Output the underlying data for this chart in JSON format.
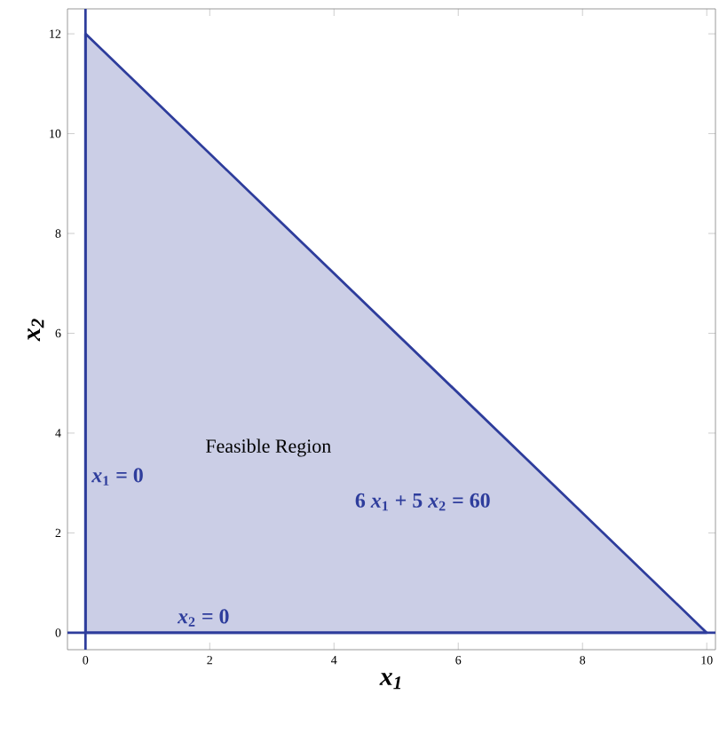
{
  "chart_data": {
    "type": "area",
    "xlabel": "x$_{1}$",
    "ylabel": "x$_{2}$",
    "xlim": [
      -0.29,
      10.14
    ],
    "ylim": [
      -0.34,
      12.5
    ],
    "xticks": [
      0,
      2,
      4,
      6,
      8,
      10
    ],
    "yticks": [
      0,
      2,
      4,
      6,
      8,
      10,
      12
    ],
    "series": [
      {
        "name": "6 *x*$_{1}$ + 5 *x*$_{2}$ = 60",
        "color": "#2e3d9c",
        "x": [
          0,
          10
        ],
        "values": [
          12,
          0
        ]
      }
    ],
    "ref_lines": [
      {
        "axis": "x",
        "value": 0,
        "label": "*x*$_{1}$ = 0",
        "color": "#2e3d9c"
      },
      {
        "axis": "y",
        "value": 0,
        "label": "*x*$_{2}$ = 0",
        "color": "#2e3d9c"
      }
    ],
    "annotations": [
      "Feasible Region"
    ]
  }
}
